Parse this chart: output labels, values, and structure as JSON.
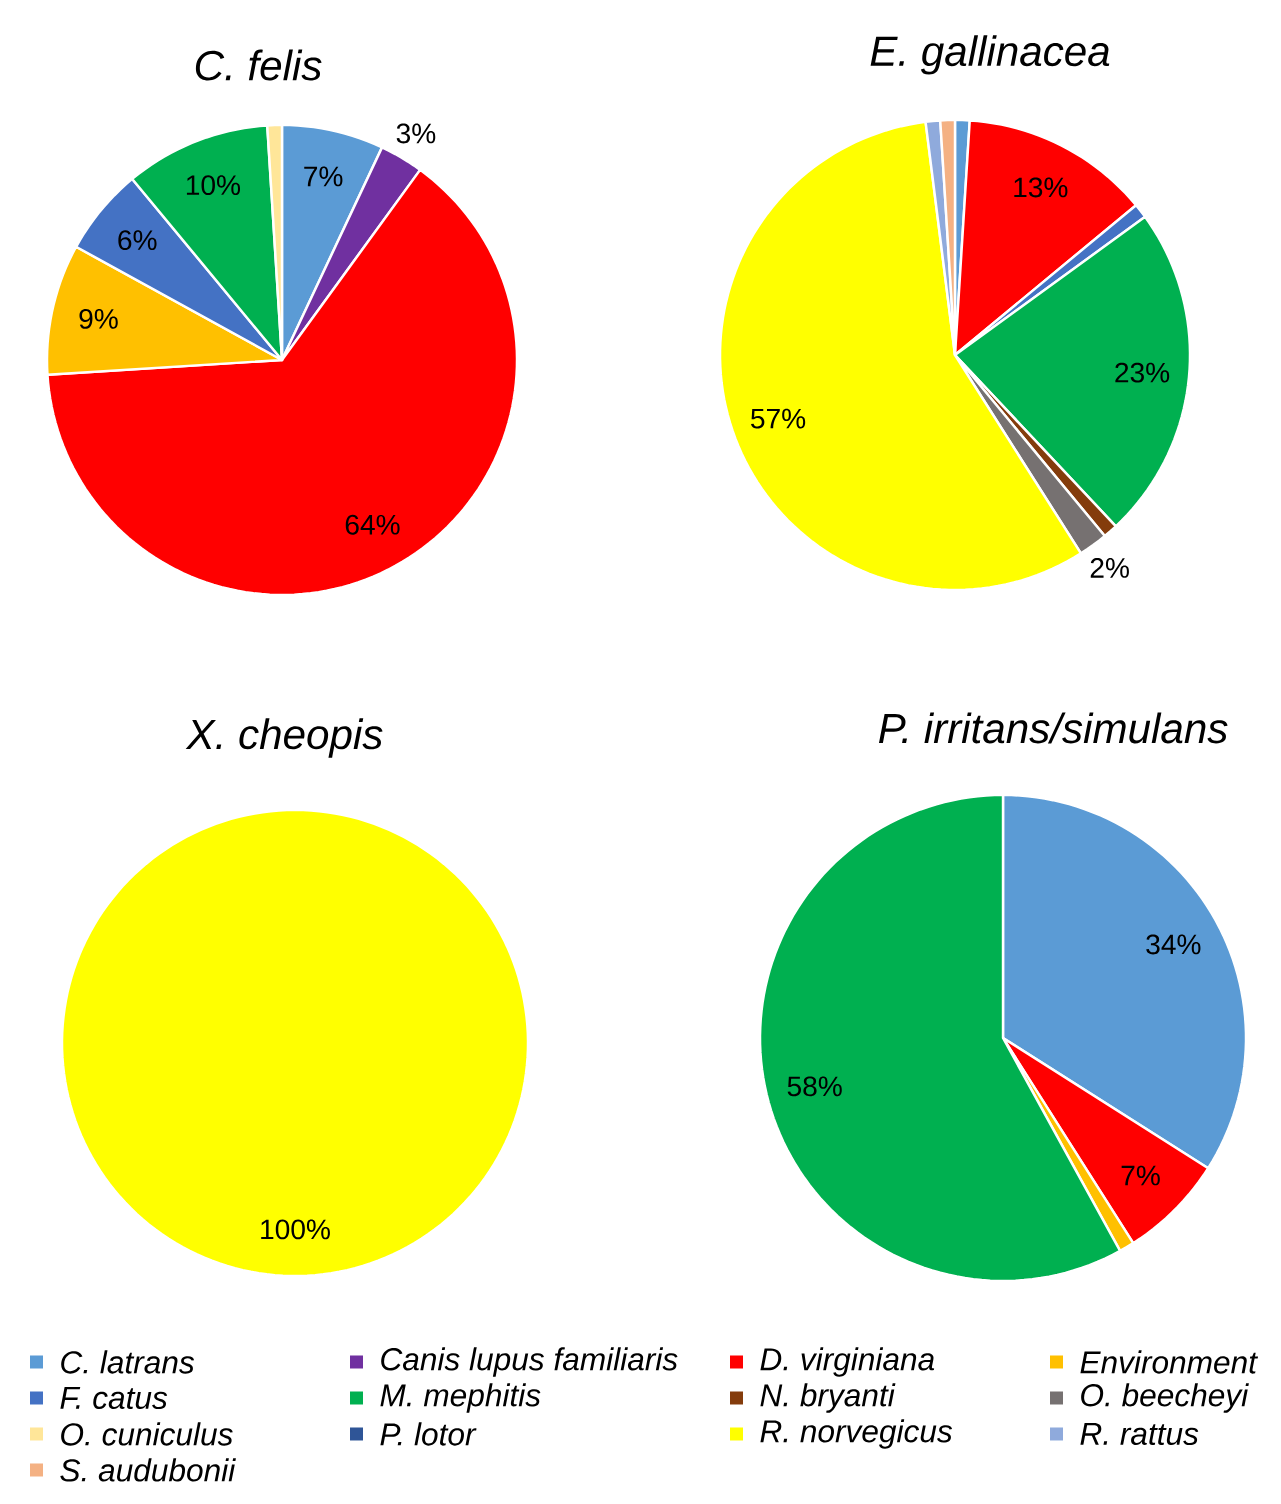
{
  "chart_data": [
    {
      "type": "pie",
      "title": "C. felis",
      "categories": [
        null,
        null,
        null,
        null,
        null,
        null,
        null,
        null,
        null,
        null,
        null,
        null,
        null
      ],
      "values": [
        7,
        3,
        64,
        9,
        6,
        10,
        0,
        0,
        1,
        0,
        0,
        0,
        0
      ],
      "value_labels": [
        "7%",
        "3%",
        "64%",
        "9%",
        "6%",
        "10%",
        null,
        null,
        null,
        null,
        null,
        null,
        null
      ],
      "colors": [
        "#5b9bd5",
        "#7030a0",
        "#ff0000",
        "#ffc000",
        "#4472c4",
        "#00b050",
        "#843c0c",
        "#767171",
        "#ffe699",
        "#2f5597",
        "#ffff00",
        "#8faadc",
        "#f4b183"
      ]
    },
    {
      "type": "pie",
      "title": "E. gallinacea",
      "categories": [
        null,
        null,
        null,
        null,
        null,
        null,
        null,
        null,
        null,
        null,
        null,
        null,
        null
      ],
      "values": [
        1,
        0,
        13,
        0,
        1,
        23,
        1,
        2,
        0,
        0,
        57,
        1,
        1
      ],
      "value_labels": [
        null,
        null,
        "13%",
        null,
        null,
        "23%",
        null,
        "2%",
        null,
        null,
        "57%",
        null,
        null
      ],
      "colors": [
        "#5b9bd5",
        "#7030a0",
        "#ff0000",
        "#ffc000",
        "#4472c4",
        "#00b050",
        "#843c0c",
        "#767171",
        "#ffe699",
        "#2f5597",
        "#ffff00",
        "#8faadc",
        "#f4b183"
      ]
    },
    {
      "type": "pie",
      "title": "X. cheopis",
      "legend": "bottom",
      "categories": [
        "C. latrans",
        "Canis lupus familiaris",
        "D. virginiana",
        "Environment",
        "F. catus",
        "M. mephitis",
        "N. bryanti",
        "O. beecheyi",
        "O. cuniculus",
        "P. lotor",
        "R. norvegicus",
        "R. rattus",
        "S. audubonii"
      ],
      "values": [
        0,
        0,
        0,
        0,
        0,
        0,
        0,
        0,
        0,
        0,
        100,
        0,
        0
      ],
      "value_labels": [
        null,
        null,
        null,
        null,
        null,
        null,
        null,
        null,
        null,
        null,
        "100%",
        null,
        null
      ],
      "colors": [
        "#5b9bd5",
        "#7030a0",
        "#ff0000",
        "#ffc000",
        "#4472c4",
        "#00b050",
        "#843c0c",
        "#767171",
        "#ffe699",
        "#2f5597",
        "#ffff00",
        "#8faadc",
        "#f4b183"
      ]
    },
    {
      "type": "pie",
      "title": "P. irritans/simulans",
      "categories": [
        null,
        null,
        null,
        null,
        null,
        null,
        null,
        null,
        null,
        null,
        null,
        null,
        null
      ],
      "values": [
        34,
        0,
        7,
        1,
        0,
        58,
        0,
        0,
        0,
        0,
        0,
        0,
        0
      ],
      "value_labels": [
        "34%",
        null,
        "7%",
        null,
        null,
        "58%",
        null,
        null,
        null,
        null,
        null,
        null,
        null
      ],
      "colors": [
        "#5b9bd5",
        "#7030a0",
        "#ff0000",
        "#ffc000",
        "#4472c4",
        "#00b050",
        "#843c0c",
        "#767171",
        "#ffe699",
        "#2f5597",
        "#ffff00",
        "#8faadc",
        "#f4b183"
      ]
    }
  ]
}
